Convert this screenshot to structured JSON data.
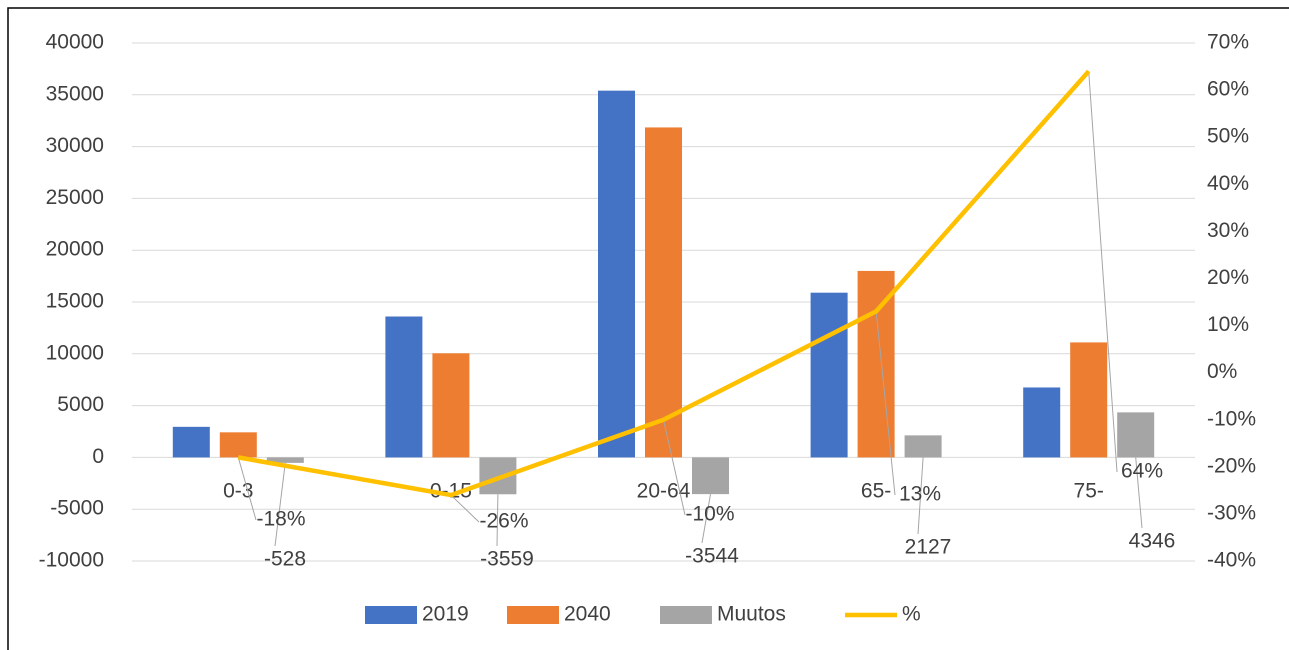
{
  "chart_data": {
    "type": "bar-line",
    "categories": [
      "0-3",
      "0-15",
      "20-64",
      "65-",
      "75-"
    ],
    "series": [
      {
        "name": "2019",
        "color": "#4472c4",
        "type": "bar",
        "values": [
          2950,
          13600,
          35400,
          15900,
          6750
        ]
      },
      {
        "name": "2040",
        "color": "#ed7d31",
        "type": "bar",
        "values": [
          2420,
          10050,
          31850,
          18000,
          11100
        ]
      },
      {
        "name": "Muutos",
        "color": "#a5a5a5",
        "type": "bar",
        "values": [
          -528,
          -3559,
          -3544,
          2127,
          4346
        ]
      },
      {
        "name": "%",
        "color": "#ffc000",
        "type": "line",
        "axis": "y2",
        "values": [
          -18,
          -26,
          -10,
          13,
          64
        ],
        "value_labels": [
          "-18%",
          "-26%",
          "-10%",
          "13%",
          "64%"
        ]
      }
    ],
    "ylim": [
      -10000,
      40000
    ],
    "yticks": [
      -10000,
      -5000,
      0,
      5000,
      10000,
      15000,
      20000,
      25000,
      30000,
      35000,
      40000
    ],
    "y2lim": [
      -40,
      70
    ],
    "y2ticks": [
      {
        "value": -40,
        "label": "-40%"
      },
      {
        "value": -30,
        "label": "-30%"
      },
      {
        "value": -20,
        "label": "-20%"
      },
      {
        "value": -10,
        "label": "-10%"
      },
      {
        "value": 0,
        "label": "0%"
      },
      {
        "value": 10,
        "label": "10%"
      },
      {
        "value": 20,
        "label": "20%"
      },
      {
        "value": 30,
        "label": "30%"
      },
      {
        "value": 40,
        "label": "40%"
      },
      {
        "value": 50,
        "label": "50%"
      },
      {
        "value": 60,
        "label": "60%"
      },
      {
        "value": 70,
        "label": "70%"
      }
    ],
    "grid": true,
    "legend": "bottom"
  }
}
